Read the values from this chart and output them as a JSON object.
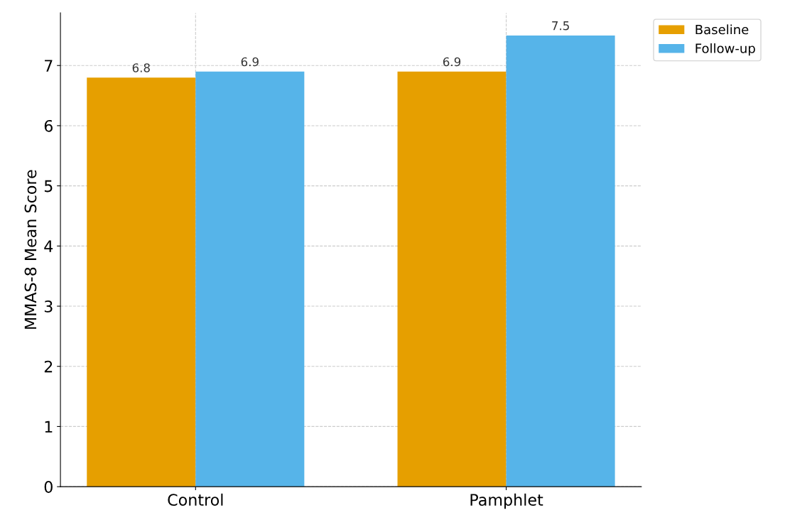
{
  "chart_data": {
    "type": "bar",
    "ylabel": "MMAS-8 Mean Score",
    "categories": [
      "Control",
      "Pamphlet"
    ],
    "series": [
      {
        "name": "Baseline",
        "color": "#e69f00",
        "values": [
          6.8,
          6.9
        ]
      },
      {
        "name": "Follow-up",
        "color": "#56b4e9",
        "values": [
          6.9,
          7.5
        ]
      }
    ],
    "ylim": [
      0,
      7.875
    ],
    "yticks": [
      0,
      1,
      2,
      3,
      4,
      5,
      6,
      7
    ],
    "grid": true,
    "legend": "top right",
    "data_labels": true
  }
}
